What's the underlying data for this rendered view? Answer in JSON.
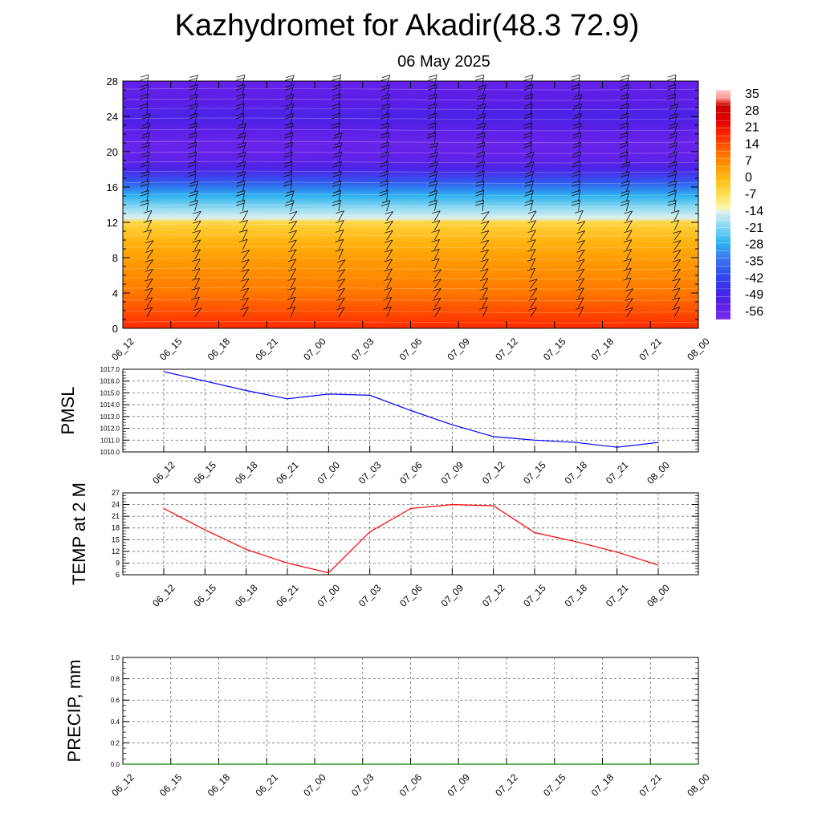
{
  "page": {
    "title": "Kazhydromet for Akadir(48.3 72.9)",
    "subtitle": "06 May 2025"
  },
  "chart_data": [
    {
      "type": "heatmap",
      "x_ticks": [
        "06_12",
        "06_15",
        "06_18",
        "06_21",
        "07_00",
        "07_03",
        "07_06",
        "07_09",
        "07_12",
        "07_15",
        "07_18",
        "07_21",
        "08_00"
      ],
      "y_ticks": [
        "0",
        "4",
        "8",
        "12",
        "16",
        "20",
        "24",
        "28"
      ],
      "ylim": [
        0,
        28
      ],
      "colorbar": {
        "labels": [
          "35",
          "28",
          "21",
          "14",
          "7",
          "0",
          "-7",
          "-14",
          "-21",
          "-28",
          "-35",
          "-42",
          "-49",
          "-56"
        ],
        "range": [
          -63,
          42
        ]
      },
      "profile": {
        "height": [
          0,
          2,
          4,
          6,
          8,
          10,
          12,
          12.5,
          13.5,
          15,
          16.5,
          18,
          19.5,
          21,
          23,
          24,
          25.5,
          28
        ],
        "temperature": [
          21,
          17,
          12,
          9,
          6,
          2,
          -4,
          -14,
          -19,
          -28,
          -40,
          -53,
          -58,
          -59,
          -55,
          -52,
          -56,
          -58
        ]
      },
      "wind_barbs": true
    },
    {
      "type": "line",
      "ylabel": "PMSL",
      "y_ticks": [
        "1010.0",
        "1011.0",
        "1012.0",
        "1013.0",
        "1014.0",
        "1015.0",
        "1016.0",
        "1017.0"
      ],
      "ylim": [
        1010,
        1017
      ],
      "categories": [
        "06_12",
        "06_15",
        "06_18",
        "06_21",
        "07_00",
        "07_03",
        "07_06",
        "07_09",
        "07_12",
        "07_15",
        "07_18",
        "07_21",
        "08_00"
      ],
      "series": [
        {
          "values": [
            1016.8,
            1016.0,
            1015.2,
            1014.5,
            1014.9,
            1014.8,
            1013.5,
            1012.3,
            1011.3,
            1011.0,
            1010.8,
            1010.4,
            1010.8
          ],
          "color": "#0000ff"
        }
      ],
      "grid": true
    },
    {
      "type": "line",
      "ylabel": "TEMP at 2 M",
      "y_ticks": [
        "6",
        "9",
        "12",
        "15",
        "18",
        "21",
        "24",
        "27"
      ],
      "ylim": [
        6,
        27
      ],
      "categories": [
        "06_12",
        "06_15",
        "06_18",
        "06_21",
        "07_00",
        "07_03",
        "07_06",
        "07_09",
        "07_12",
        "07_15",
        "07_18",
        "07_21",
        "08_00"
      ],
      "series": [
        {
          "values": [
            23.0,
            17.5,
            12.5,
            9.0,
            6.5,
            17.0,
            23.0,
            24.0,
            23.7,
            16.8,
            14.5,
            11.8,
            8.5
          ],
          "color": "#ff0000"
        }
      ],
      "grid": true
    },
    {
      "type": "line",
      "ylabel": "PRECIP, mm",
      "y_ticks": [
        "0.0",
        "0.2",
        "0.4",
        "0.6",
        "0.8",
        "1.0"
      ],
      "ylim": [
        0,
        1
      ],
      "categories": [
        "06_12",
        "06_15",
        "06_18",
        "06_21",
        "07_00",
        "07_03",
        "07_06",
        "07_09",
        "07_12",
        "07_15",
        "07_18",
        "07_21",
        "08_00"
      ],
      "series": [
        {
          "values": [
            0,
            0,
            0,
            0,
            0,
            0,
            0,
            0,
            0,
            0,
            0,
            0,
            0
          ],
          "color": "#008000"
        }
      ],
      "grid": true
    }
  ]
}
